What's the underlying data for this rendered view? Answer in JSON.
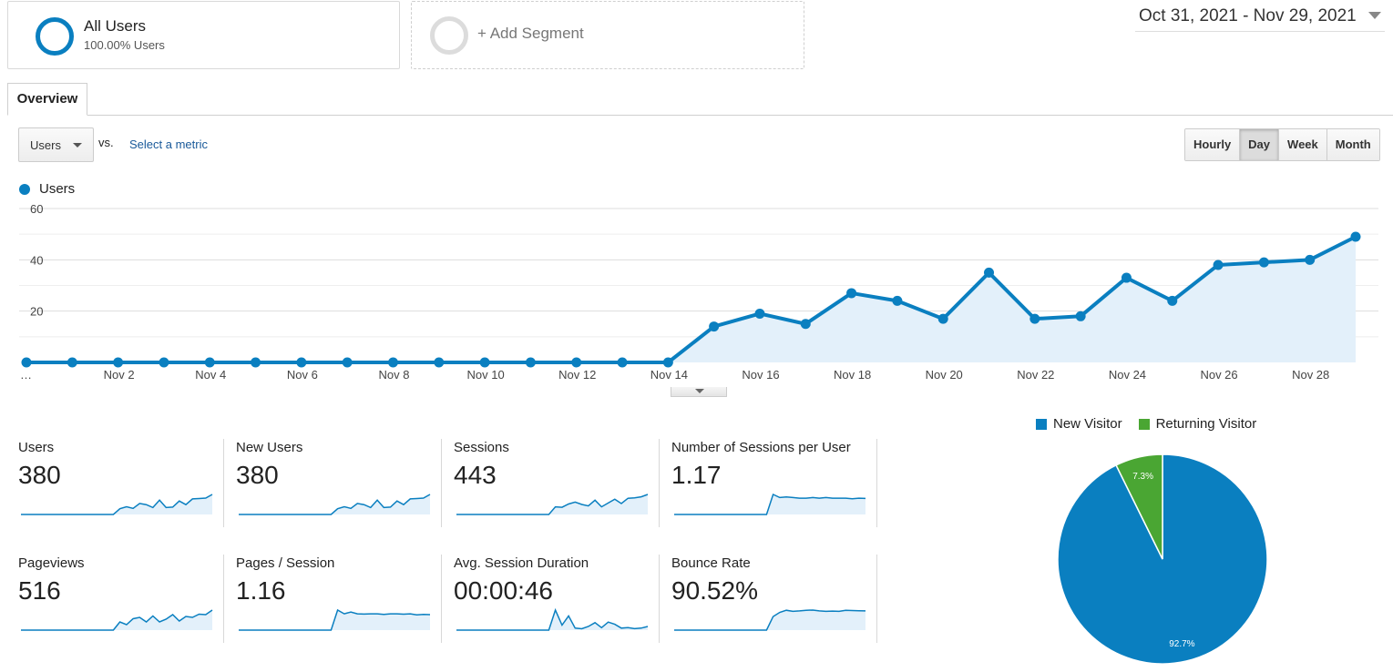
{
  "segments": {
    "all_users": {
      "title": "All Users",
      "subtitle": "100.00% Users"
    },
    "add_segment": {
      "label": "+ Add Segment"
    }
  },
  "date_range": "Oct 31, 2021 - Nov 29, 2021",
  "tabs": [
    {
      "label": "Overview",
      "active": true
    }
  ],
  "metric_picker": {
    "selected": "Users",
    "vs_label": "vs.",
    "select_link": "Select a metric"
  },
  "granularity": [
    {
      "label": "Hourly",
      "active": false
    },
    {
      "label": "Day",
      "active": true
    },
    {
      "label": "Week",
      "active": false
    },
    {
      "label": "Month",
      "active": false
    }
  ],
  "colors": {
    "primary": "#0a7fc0",
    "primary_fill": "#e3f0fa",
    "returning": "#4aa633"
  },
  "chart_data": [
    {
      "type": "area",
      "series": [
        {
          "name": "Users",
          "values": [
            0,
            0,
            0,
            0,
            0,
            0,
            0,
            0,
            0,
            0,
            0,
            0,
            0,
            0,
            0,
            14,
            19,
            15,
            27,
            24,
            17,
            35,
            17,
            18,
            33,
            24,
            38,
            39,
            40,
            49
          ]
        }
      ],
      "x_tick_labels": [
        "…",
        "Nov 2",
        "Nov 4",
        "Nov 6",
        "Nov 8",
        "Nov 10",
        "Nov 12",
        "Nov 14",
        "Nov 16",
        "Nov 18",
        "Nov 20",
        "Nov 22",
        "Nov 24",
        "Nov 26",
        "Nov 28"
      ],
      "y_tick_labels": [
        "20",
        "40",
        "60"
      ],
      "ylim": [
        0,
        60
      ],
      "grid": true,
      "legend": "top-left"
    },
    {
      "type": "pie",
      "labels": [
        "New Visitor",
        "Returning Visitor"
      ],
      "values": [
        92.7,
        7.3
      ],
      "slice_labels": [
        "92.7%",
        "7.3%"
      ],
      "legend": "top"
    }
  ],
  "metrics": [
    {
      "label": "Users",
      "value": "380",
      "spark": [
        0,
        0,
        0,
        0,
        0,
        0,
        0,
        0,
        0,
        0,
        0,
        0,
        0,
        0,
        0,
        14,
        19,
        15,
        27,
        24,
        17,
        35,
        17,
        18,
        33,
        24,
        38,
        39,
        40,
        49
      ]
    },
    {
      "label": "New Users",
      "value": "380",
      "spark": [
        0,
        0,
        0,
        0,
        0,
        0,
        0,
        0,
        0,
        0,
        0,
        0,
        0,
        0,
        0,
        14,
        19,
        15,
        27,
        24,
        17,
        35,
        17,
        18,
        33,
        24,
        38,
        39,
        40,
        49
      ]
    },
    {
      "label": "Sessions",
      "value": "443",
      "spark": [
        0,
        0,
        0,
        0,
        0,
        0,
        0,
        0,
        0,
        0,
        0,
        0,
        0,
        0,
        0,
        16,
        15,
        22,
        26,
        21,
        18,
        30,
        16,
        24,
        32,
        23,
        34,
        35,
        37,
        42
      ]
    },
    {
      "label": "Number of Sessions per User",
      "value": "1.17",
      "spark": [
        0,
        0,
        0,
        0,
        0,
        0,
        0,
        0,
        0,
        0,
        0,
        0,
        0,
        0,
        0,
        1.6,
        1.35,
        1.4,
        1.35,
        1.3,
        1.3,
        1.35,
        1.3,
        1.35,
        1.3,
        1.3,
        1.3,
        1.25,
        1.3,
        1.28
      ]
    },
    {
      "label": "Pageviews",
      "value": "516",
      "spark": [
        0,
        0,
        0,
        0,
        0,
        0,
        0,
        0,
        0,
        0,
        0,
        0,
        0,
        0,
        0,
        18,
        12,
        25,
        28,
        18,
        31,
        18,
        24,
        34,
        20,
        30,
        28,
        35,
        34,
        44
      ]
    },
    {
      "label": "Pages / Session",
      "value": "1.16",
      "spark": [
        0,
        0,
        0,
        0,
        0,
        0,
        0,
        0,
        0,
        0,
        0,
        0,
        0,
        0,
        0,
        1.6,
        1.3,
        1.45,
        1.3,
        1.28,
        1.3,
        1.3,
        1.25,
        1.3,
        1.3,
        1.27,
        1.3,
        1.22,
        1.25,
        1.24
      ]
    },
    {
      "label": "Avg. Session Duration",
      "value": "00:00:46",
      "spark": [
        0,
        0,
        0,
        0,
        0,
        0,
        0,
        0,
        0,
        0,
        0,
        0,
        0,
        0,
        0,
        120,
        30,
        85,
        12,
        8,
        22,
        45,
        15,
        48,
        35,
        12,
        15,
        9,
        12,
        22
      ]
    },
    {
      "label": "Bounce Rate",
      "value": "90.52%",
      "spark": [
        0,
        0,
        0,
        0,
        0,
        0,
        0,
        0,
        0,
        0,
        0,
        0,
        0,
        0,
        0,
        65,
        85,
        95,
        90,
        92,
        95,
        96,
        92,
        90,
        91,
        90,
        95,
        94,
        93,
        92
      ]
    }
  ]
}
